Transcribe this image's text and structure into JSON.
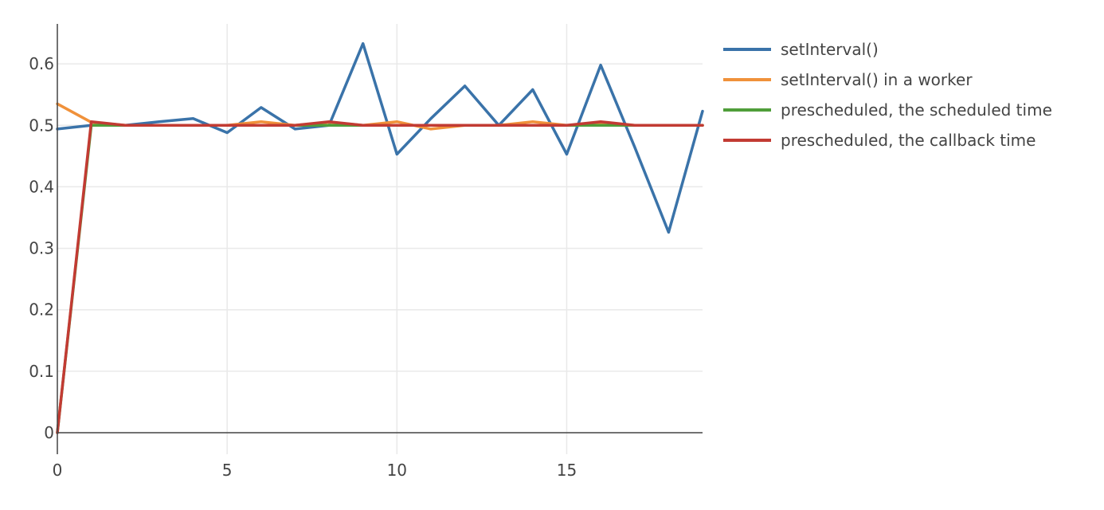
{
  "chart_data": {
    "type": "line",
    "title": "",
    "xlabel": "",
    "ylabel": "",
    "xlim": [
      0,
      19
    ],
    "ylim": [
      -0.035,
      0.665
    ],
    "x_ticks": [
      0,
      5,
      10,
      15
    ],
    "y_ticks": [
      0,
      0.1,
      0.2,
      0.3,
      0.4,
      0.5,
      0.6
    ],
    "grid": true,
    "legend_position": "top-right (outside plot)",
    "x": [
      0,
      1,
      2,
      3,
      4,
      5,
      6,
      7,
      8,
      9,
      10,
      11,
      12,
      13,
      14,
      15,
      16,
      17,
      18,
      19
    ],
    "series": [
      {
        "name": "setInterval()",
        "color": "#3a73a9",
        "values": [
          0.494,
          0.5,
          0.5,
          0.506,
          0.511,
          0.488,
          0.529,
          0.494,
          0.5,
          0.633,
          0.453,
          0.511,
          0.564,
          0.5,
          0.558,
          0.453,
          0.598,
          0.465,
          0.326,
          0.523
        ]
      },
      {
        "name": "setInterval() in a worker",
        "color": "#f0913a",
        "values": [
          0.535,
          0.505,
          0.5,
          0.5,
          0.5,
          0.5,
          0.506,
          0.5,
          0.505,
          0.5,
          0.506,
          0.494,
          0.5,
          0.5,
          0.506,
          0.5,
          0.503,
          0.5,
          0.5,
          0.5
        ]
      },
      {
        "name": "prescheduled, the scheduled time",
        "color": "#4f9e3a",
        "values": [
          0,
          0.5,
          0.5,
          0.5,
          0.5,
          0.5,
          0.5,
          0.5,
          0.5,
          0.5,
          0.5,
          0.5,
          0.5,
          0.5,
          0.5,
          0.5,
          0.5,
          0.5,
          0.5,
          0.5
        ]
      },
      {
        "name": "prescheduled, the callback time",
        "color": "#c23b33",
        "values": [
          0,
          0.506,
          0.5,
          0.5,
          0.5,
          0.5,
          0.5,
          0.5,
          0.506,
          0.5,
          0.5,
          0.5,
          0.5,
          0.5,
          0.5,
          0.5,
          0.506,
          0.5,
          0.5,
          0.5
        ]
      }
    ]
  }
}
